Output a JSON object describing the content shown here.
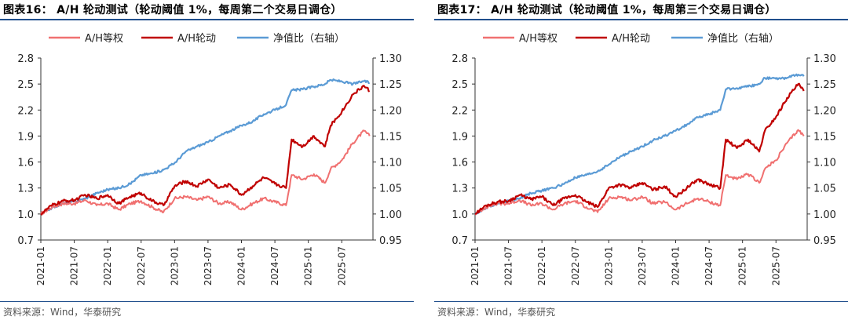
{
  "panels": [
    {
      "title": "图表16：  A/H 轮动测试（轮动阈值 1%，每周第二个交易日调仓）",
      "source": "资料来源：Wind，华泰研究"
    },
    {
      "title": "图表17：  A/H 轮动测试（轮动阈值 1%，每周第三个交易日调仓）",
      "source": "资料来源：Wind，华泰研究"
    }
  ],
  "chart_data": [
    {
      "type": "line",
      "title": "",
      "left_axis": {
        "ylim": [
          0.7,
          2.8
        ],
        "ticks": [
          "0.7",
          "1.0",
          "1.3",
          "1.6",
          "1.9",
          "2.2",
          "2.5",
          "2.8"
        ]
      },
      "right_axis": {
        "ylim": [
          0.95,
          1.3
        ],
        "ticks": [
          "0.95",
          "1.00",
          "1.05",
          "1.10",
          "1.15",
          "1.20",
          "1.25",
          "1.30"
        ]
      },
      "x_ticks": [
        "2021-01",
        "2021-07",
        "2022-01",
        "2022-07",
        "2023-01",
        "2023-07",
        "2024-01",
        "2024-07",
        "2025-01",
        "2025-07"
      ],
      "legend_position": "top",
      "colors": {
        "equal": "#f07070",
        "rotation": "#c00000",
        "ratio": "#5b9bd5"
      },
      "series": [
        {
          "name": "A/H等权",
          "axis": "left",
          "points": [
            [
              "2021-01",
              1.0
            ],
            [
              "2021-03",
              1.08
            ],
            [
              "2021-05",
              1.12
            ],
            [
              "2021-07",
              1.12
            ],
            [
              "2021-09",
              1.16
            ],
            [
              "2021-11",
              1.1
            ],
            [
              "2022-01",
              1.12
            ],
            [
              "2022-03",
              1.05
            ],
            [
              "2022-05",
              1.12
            ],
            [
              "2022-07",
              1.15
            ],
            [
              "2022-09",
              1.08
            ],
            [
              "2022-11",
              1.02
            ],
            [
              "2023-01",
              1.18
            ],
            [
              "2023-03",
              1.2
            ],
            [
              "2023-05",
              1.16
            ],
            [
              "2023-07",
              1.2
            ],
            [
              "2023-09",
              1.12
            ],
            [
              "2023-11",
              1.14
            ],
            [
              "2024-01",
              1.05
            ],
            [
              "2024-03",
              1.12
            ],
            [
              "2024-05",
              1.18
            ],
            [
              "2024-07",
              1.14
            ],
            [
              "2024-09",
              1.1
            ],
            [
              "2024-10",
              1.45
            ],
            [
              "2024-12",
              1.4
            ],
            [
              "2025-02",
              1.46
            ],
            [
              "2025-04",
              1.36
            ],
            [
              "2025-05",
              1.52
            ],
            [
              "2025-07",
              1.62
            ],
            [
              "2025-09",
              1.82
            ],
            [
              "2025-11",
              1.96
            ],
            [
              "2025-12",
              1.9
            ]
          ]
        },
        {
          "name": "A/H轮动",
          "axis": "left",
          "points": [
            [
              "2021-01",
              1.0
            ],
            [
              "2021-03",
              1.1
            ],
            [
              "2021-05",
              1.15
            ],
            [
              "2021-07",
              1.16
            ],
            [
              "2021-09",
              1.22
            ],
            [
              "2021-11",
              1.18
            ],
            [
              "2022-01",
              1.22
            ],
            [
              "2022-03",
              1.12
            ],
            [
              "2022-05",
              1.2
            ],
            [
              "2022-07",
              1.24
            ],
            [
              "2022-09",
              1.15
            ],
            [
              "2022-11",
              1.1
            ],
            [
              "2023-01",
              1.32
            ],
            [
              "2023-03",
              1.38
            ],
            [
              "2023-05",
              1.32
            ],
            [
              "2023-07",
              1.4
            ],
            [
              "2023-09",
              1.3
            ],
            [
              "2023-11",
              1.34
            ],
            [
              "2024-01",
              1.22
            ],
            [
              "2024-03",
              1.32
            ],
            [
              "2024-05",
              1.42
            ],
            [
              "2024-07",
              1.35
            ],
            [
              "2024-09",
              1.3
            ],
            [
              "2024-10",
              1.86
            ],
            [
              "2024-12",
              1.78
            ],
            [
              "2025-02",
              1.9
            ],
            [
              "2025-04",
              1.78
            ],
            [
              "2025-05",
              2.02
            ],
            [
              "2025-07",
              2.18
            ],
            [
              "2025-09",
              2.38
            ],
            [
              "2025-11",
              2.48
            ],
            [
              "2025-12",
              2.42
            ]
          ]
        },
        {
          "name": "净值比（右轴）",
          "axis": "right",
          "points": [
            [
              "2021-01",
              1.0
            ],
            [
              "2021-03",
              1.012
            ],
            [
              "2021-05",
              1.02
            ],
            [
              "2021-07",
              1.024
            ],
            [
              "2021-09",
              1.03
            ],
            [
              "2021-11",
              1.04
            ],
            [
              "2022-01",
              1.047
            ],
            [
              "2022-03",
              1.05
            ],
            [
              "2022-05",
              1.058
            ],
            [
              "2022-07",
              1.075
            ],
            [
              "2022-09",
              1.078
            ],
            [
              "2022-11",
              1.085
            ],
            [
              "2023-01",
              1.098
            ],
            [
              "2023-03",
              1.12
            ],
            [
              "2023-05",
              1.13
            ],
            [
              "2023-07",
              1.138
            ],
            [
              "2023-09",
              1.15
            ],
            [
              "2023-11",
              1.16
            ],
            [
              "2024-01",
              1.17
            ],
            [
              "2024-03",
              1.178
            ],
            [
              "2024-05",
              1.192
            ],
            [
              "2024-07",
              1.2
            ],
            [
              "2024-09",
              1.21
            ],
            [
              "2024-10",
              1.238
            ],
            [
              "2024-12",
              1.24
            ],
            [
              "2025-02",
              1.245
            ],
            [
              "2025-04",
              1.25
            ],
            [
              "2025-05",
              1.258
            ],
            [
              "2025-07",
              1.255
            ],
            [
              "2025-09",
              1.25
            ],
            [
              "2025-11",
              1.256
            ],
            [
              "2025-12",
              1.252
            ]
          ]
        }
      ]
    },
    {
      "type": "line",
      "title": "",
      "left_axis": {
        "ylim": [
          0.7,
          2.8
        ],
        "ticks": [
          "0.7",
          "1.0",
          "1.3",
          "1.6",
          "1.9",
          "2.2",
          "2.5",
          "2.8"
        ]
      },
      "right_axis": {
        "ylim": [
          0.95,
          1.3
        ],
        "ticks": [
          "0.95",
          "1.00",
          "1.05",
          "1.10",
          "1.15",
          "1.20",
          "1.25",
          "1.30"
        ]
      },
      "x_ticks": [
        "2021-01",
        "2021-07",
        "2022-01",
        "2022-07",
        "2023-01",
        "2023-07",
        "2024-01",
        "2024-07",
        "2025-01",
        "2025-07"
      ],
      "legend_position": "top",
      "colors": {
        "equal": "#f07070",
        "rotation": "#c00000",
        "ratio": "#5b9bd5"
      },
      "series": [
        {
          "name": "A/H等权",
          "axis": "left",
          "points": [
            [
              "2021-01",
              1.0
            ],
            [
              "2021-03",
              1.08
            ],
            [
              "2021-05",
              1.12
            ],
            [
              "2021-07",
              1.12
            ],
            [
              "2021-09",
              1.16
            ],
            [
              "2021-11",
              1.1
            ],
            [
              "2022-01",
              1.12
            ],
            [
              "2022-03",
              1.05
            ],
            [
              "2022-05",
              1.12
            ],
            [
              "2022-07",
              1.15
            ],
            [
              "2022-09",
              1.08
            ],
            [
              "2022-11",
              1.02
            ],
            [
              "2023-01",
              1.18
            ],
            [
              "2023-03",
              1.2
            ],
            [
              "2023-05",
              1.16
            ],
            [
              "2023-07",
              1.2
            ],
            [
              "2023-09",
              1.12
            ],
            [
              "2023-11",
              1.14
            ],
            [
              "2024-01",
              1.05
            ],
            [
              "2024-03",
              1.12
            ],
            [
              "2024-05",
              1.18
            ],
            [
              "2024-07",
              1.14
            ],
            [
              "2024-09",
              1.1
            ],
            [
              "2024-10",
              1.45
            ],
            [
              "2024-12",
              1.4
            ],
            [
              "2025-02",
              1.46
            ],
            [
              "2025-04",
              1.36
            ],
            [
              "2025-05",
              1.52
            ],
            [
              "2025-07",
              1.62
            ],
            [
              "2025-09",
              1.82
            ],
            [
              "2025-11",
              1.97
            ],
            [
              "2025-12",
              1.9
            ]
          ]
        },
        {
          "name": "A/H轮动",
          "axis": "left",
          "points": [
            [
              "2021-01",
              1.0
            ],
            [
              "2021-03",
              1.1
            ],
            [
              "2021-05",
              1.14
            ],
            [
              "2021-07",
              1.15
            ],
            [
              "2021-09",
              1.22
            ],
            [
              "2021-11",
              1.17
            ],
            [
              "2022-01",
              1.2
            ],
            [
              "2022-03",
              1.1
            ],
            [
              "2022-05",
              1.18
            ],
            [
              "2022-07",
              1.22
            ],
            [
              "2022-09",
              1.14
            ],
            [
              "2022-11",
              1.08
            ],
            [
              "2023-01",
              1.3
            ],
            [
              "2023-03",
              1.34
            ],
            [
              "2023-05",
              1.3
            ],
            [
              "2023-07",
              1.36
            ],
            [
              "2023-09",
              1.28
            ],
            [
              "2023-11",
              1.32
            ],
            [
              "2024-01",
              1.2
            ],
            [
              "2024-03",
              1.3
            ],
            [
              "2024-05",
              1.4
            ],
            [
              "2024-07",
              1.34
            ],
            [
              "2024-09",
              1.3
            ],
            [
              "2024-10",
              1.86
            ],
            [
              "2024-12",
              1.76
            ],
            [
              "2025-02",
              1.86
            ],
            [
              "2025-04",
              1.72
            ],
            [
              "2025-05",
              1.96
            ],
            [
              "2025-07",
              2.12
            ],
            [
              "2025-09",
              2.34
            ],
            [
              "2025-11",
              2.5
            ],
            [
              "2025-12",
              2.42
            ]
          ]
        },
        {
          "name": "净值比（右轴）",
          "axis": "right",
          "points": [
            [
              "2021-01",
              1.0
            ],
            [
              "2021-03",
              1.012
            ],
            [
              "2021-05",
              1.02
            ],
            [
              "2021-07",
              1.025
            ],
            [
              "2021-09",
              1.03
            ],
            [
              "2021-11",
              1.04
            ],
            [
              "2022-01",
              1.045
            ],
            [
              "2022-03",
              1.05
            ],
            [
              "2022-05",
              1.058
            ],
            [
              "2022-07",
              1.07
            ],
            [
              "2022-09",
              1.075
            ],
            [
              "2022-11",
              1.082
            ],
            [
              "2023-01",
              1.095
            ],
            [
              "2023-03",
              1.11
            ],
            [
              "2023-05",
              1.12
            ],
            [
              "2023-07",
              1.13
            ],
            [
              "2023-09",
              1.142
            ],
            [
              "2023-11",
              1.15
            ],
            [
              "2024-01",
              1.16
            ],
            [
              "2024-03",
              1.172
            ],
            [
              "2024-05",
              1.186
            ],
            [
              "2024-07",
              1.192
            ],
            [
              "2024-09",
              1.2
            ],
            [
              "2024-10",
              1.24
            ],
            [
              "2024-12",
              1.242
            ],
            [
              "2025-02",
              1.245
            ],
            [
              "2025-04",
              1.25
            ],
            [
              "2025-05",
              1.262
            ],
            [
              "2025-07",
              1.26
            ],
            [
              "2025-09",
              1.262
            ],
            [
              "2025-11",
              1.268
            ],
            [
              "2025-12",
              1.265
            ]
          ]
        }
      ]
    }
  ]
}
